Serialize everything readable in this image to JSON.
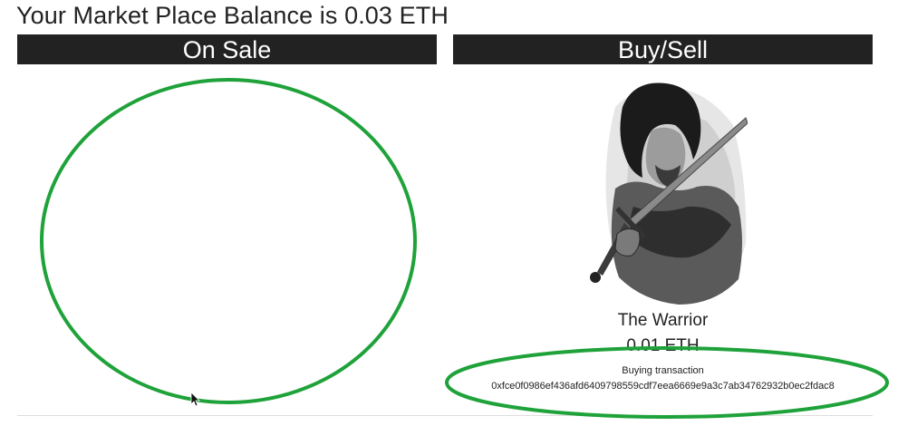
{
  "page": {
    "balance_title": "Your Market Place Balance is 0.03 ETH"
  },
  "panels": {
    "on_sale_label": "On Sale",
    "buy_sell_label": "Buy/Sell"
  },
  "item": {
    "image_icon": "warrior-illustration",
    "name": "The Warrior",
    "price": "0.01 ETH"
  },
  "transaction": {
    "label": "Buying transaction",
    "hash": "0xfce0f0986ef436afd6409798559cdf7eea6669e9a3c7ab34762932b0ec2fdac8"
  },
  "annotations": {
    "highlight_color": "#1fa23a"
  }
}
